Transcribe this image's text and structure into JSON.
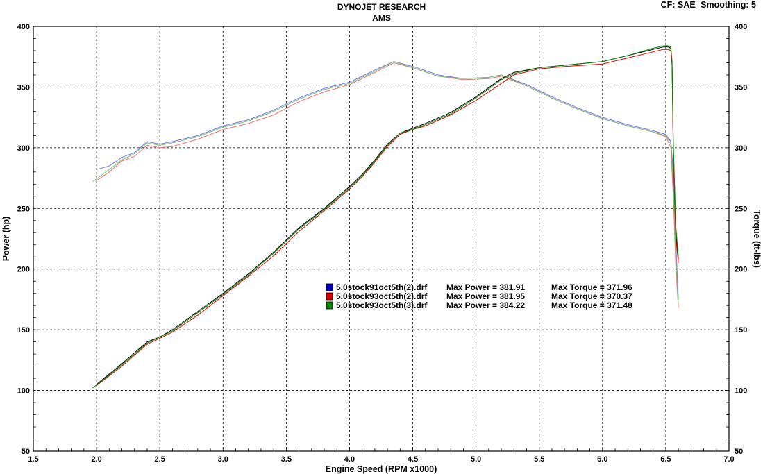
{
  "header": {
    "title": "DYNOJET RESEARCH",
    "subtitle": "AMS",
    "cf_label": "CF: SAE",
    "smoothing_label": "Smoothing: 5"
  },
  "chart_data": {
    "type": "line",
    "xlabel": "Engine Speed (RPM x1000)",
    "ylabel": "Power (hp)",
    "y2label": "Torque (ft-lbs)",
    "xlim": [
      1.5,
      7.0
    ],
    "ylim": [
      50,
      400
    ],
    "y2lim": [
      50,
      400
    ],
    "xticks": [
      "1.5",
      "2.0",
      "2.5",
      "3.0",
      "3.5",
      "4.0",
      "4.5",
      "5.0",
      "5.5",
      "6.0",
      "6.5",
      "7.0"
    ],
    "yticks": [
      "50",
      "100",
      "150",
      "200",
      "250",
      "300",
      "350",
      "400"
    ],
    "y2ticks": [
      "50",
      "100",
      "150",
      "200",
      "250",
      "300",
      "350",
      "400"
    ],
    "grid": true,
    "legend_position": "center",
    "series": [
      {
        "name": "5.0stock91oct5th(2).drf",
        "color": "#0000cc",
        "max_power_label": "Max Power = 381.91",
        "max_torque_label": "Max Torque = 371.96",
        "power": {
          "x": [
            2.0,
            2.2,
            2.4,
            2.5,
            2.6,
            2.8,
            3.0,
            3.2,
            3.4,
            3.6,
            3.8,
            4.0,
            4.1,
            4.2,
            4.3,
            4.4,
            4.5,
            4.6,
            4.8,
            5.0,
            5.2,
            5.3,
            5.5,
            5.7,
            6.0,
            6.2,
            6.4,
            6.48,
            6.52,
            6.54,
            6.55,
            6.56,
            6.58,
            6.6
          ],
          "y": [
            105,
            122,
            140,
            144,
            150,
            165,
            180,
            196,
            214,
            234,
            250,
            268,
            278,
            290,
            303,
            312,
            316,
            320,
            329,
            342,
            357,
            362,
            366,
            368,
            371,
            376,
            381,
            383,
            383,
            382,
            370,
            300,
            230,
            208
          ]
        },
        "torque": {
          "x": [
            2.0,
            2.1,
            2.2,
            2.3,
            2.4,
            2.5,
            2.6,
            2.8,
            3.0,
            3.2,
            3.4,
            3.6,
            3.8,
            4.0,
            4.2,
            4.35,
            4.5,
            4.7,
            4.9,
            5.1,
            5.2,
            5.4,
            5.6,
            5.8,
            6.0,
            6.2,
            6.4,
            6.5,
            6.54,
            6.56,
            6.58,
            6.6
          ],
          "y": [
            282,
            285,
            292,
            296,
            305,
            303,
            305,
            310,
            318,
            323,
            331,
            341,
            349,
            354,
            364,
            371,
            367,
            360,
            357,
            358,
            360,
            352,
            342,
            333,
            325,
            319,
            314,
            311,
            305,
            280,
            220,
            175
          ]
        }
      },
      {
        "name": "5.0stock93oct5th(2).drf",
        "color": "#dd0000",
        "max_power_label": "Max Power = 381.95",
        "max_torque_label": "Max Torque = 370.37",
        "power": {
          "x": [
            2.0,
            2.2,
            2.4,
            2.5,
            2.6,
            2.8,
            3.0,
            3.2,
            3.4,
            3.6,
            3.8,
            4.0,
            4.1,
            4.2,
            4.3,
            4.4,
            4.5,
            4.6,
            4.8,
            5.0,
            5.2,
            5.3,
            5.5,
            5.7,
            6.0,
            6.2,
            6.4,
            6.48,
            6.52,
            6.54,
            6.55,
            6.56,
            6.58,
            6.6
          ],
          "y": [
            104,
            120,
            138,
            143,
            148,
            162,
            178,
            194,
            211,
            231,
            248,
            266,
            276,
            288,
            301,
            311,
            315,
            318,
            327,
            339,
            353,
            360,
            365,
            367,
            369,
            374,
            379,
            381,
            381,
            380,
            368,
            295,
            225,
            205
          ]
        },
        "torque": {
          "x": [
            2.0,
            2.1,
            2.2,
            2.3,
            2.4,
            2.5,
            2.6,
            2.8,
            3.0,
            3.2,
            3.4,
            3.6,
            3.8,
            4.0,
            4.2,
            4.35,
            4.5,
            4.7,
            4.9,
            5.1,
            5.2,
            5.4,
            5.6,
            5.8,
            6.0,
            6.2,
            6.4,
            6.5,
            6.54,
            6.56,
            6.58,
            6.6
          ],
          "y": [
            273,
            280,
            289,
            293,
            302,
            300,
            301,
            307,
            315,
            320,
            327,
            338,
            346,
            352,
            362,
            370,
            366,
            359,
            356,
            357,
            359,
            351,
            341,
            332,
            324,
            318,
            313,
            309,
            300,
            260,
            200,
            168
          ]
        }
      },
      {
        "name": "5.0stock93oct5th(3).drf",
        "color": "#008800",
        "max_power_label": "Max Power = 384.22",
        "max_torque_label": "Max Torque = 371.48",
        "power": {
          "x": [
            1.97,
            2.2,
            2.4,
            2.5,
            2.6,
            2.8,
            3.0,
            3.2,
            3.4,
            3.6,
            3.8,
            4.0,
            4.1,
            4.2,
            4.3,
            4.4,
            4.5,
            4.6,
            4.8,
            5.0,
            5.2,
            5.3,
            5.5,
            5.7,
            6.0,
            6.2,
            6.4,
            6.48,
            6.52,
            6.54,
            6.55,
            6.56,
            6.58,
            6.6
          ],
          "y": [
            102,
            121,
            139,
            144,
            149,
            164,
            179,
            195,
            213,
            233,
            249,
            267,
            277,
            289,
            302,
            312,
            315,
            319,
            328,
            341,
            356,
            361,
            366,
            368,
            371,
            376,
            382,
            384,
            384,
            383,
            372,
            305,
            235,
            210
          ]
        },
        "torque": {
          "x": [
            1.97,
            2.1,
            2.2,
            2.3,
            2.4,
            2.5,
            2.6,
            2.8,
            3.0,
            3.2,
            3.4,
            3.6,
            3.8,
            4.0,
            4.2,
            4.35,
            4.5,
            4.7,
            4.9,
            5.1,
            5.2,
            5.4,
            5.6,
            5.8,
            6.0,
            6.2,
            6.4,
            6.5,
            6.54,
            6.56,
            6.58,
            6.6
          ],
          "y": [
            272,
            282,
            290,
            295,
            304,
            302,
            304,
            309,
            317,
            322,
            330,
            340,
            348,
            353,
            363,
            371,
            366,
            359,
            357,
            358,
            360,
            351,
            341,
            332,
            324,
            318,
            313,
            310,
            303,
            270,
            210,
            170
          ]
        }
      }
    ]
  }
}
